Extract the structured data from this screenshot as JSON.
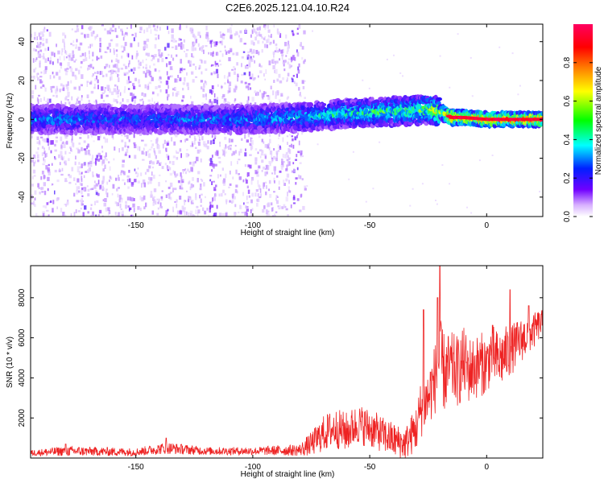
{
  "figure": {
    "title": "C2E6.2025.121.04.10.R24"
  },
  "chart_data": [
    {
      "type": "heatmap",
      "name": "spectrogram",
      "title": "C2E6.2025.121.04.10.R24",
      "xlabel": "Height of straight line (km)",
      "ylabel": "Frequency (Hz)",
      "xlim": [
        -195,
        24
      ],
      "ylim": [
        -50,
        49
      ],
      "x_ticks": [
        -150,
        -100,
        -50,
        0
      ],
      "y_ticks": [
        -40,
        -20,
        0,
        20,
        40
      ],
      "colorbar": {
        "label": "Normalized spectral amplitude",
        "range": [
          0.0,
          1.0
        ],
        "ticks": [
          "0.0",
          "0.2",
          "0.4",
          "0.6",
          "0.8"
        ],
        "tick_values": [
          0.0,
          0.2,
          0.4,
          0.6,
          0.8
        ],
        "colormap": [
          "#ffffff",
          "#7000ff",
          "#0020ff",
          "#00ffff",
          "#00ff00",
          "#ffff00",
          "#ff8000",
          "#ff0000",
          "#ff0060"
        ]
      },
      "ridge": {
        "description_points_x": [
          -195,
          -150,
          -100,
          -80,
          -60,
          -40,
          -25,
          -20,
          -15,
          -10,
          0,
          10,
          24
        ],
        "center_hz": [
          0,
          0,
          0,
          1,
          3,
          4,
          5,
          4,
          1,
          1,
          0,
          0,
          0
        ],
        "peak_amplitude": [
          0.4,
          0.35,
          0.4,
          0.45,
          0.5,
          0.55,
          0.6,
          0.7,
          0.95,
          0.95,
          0.95,
          0.95,
          0.95
        ]
      },
      "noise_region_x": [
        -195,
        -78
      ]
    },
    {
      "type": "line",
      "name": "snr",
      "xlabel": "Height of straight line (km)",
      "ylabel": "SNR (10 * v/v)",
      "xlim": [
        -195,
        24
      ],
      "ylim": [
        0,
        9600
      ],
      "x_ticks": [
        -150,
        -100,
        -50,
        0
      ],
      "y_ticks": [
        2000,
        4000,
        6000,
        8000
      ],
      "series": [
        {
          "color": "#ee2222",
          "trend_x": [
            -195,
            -180,
            -150,
            -137,
            -120,
            -100,
            -80,
            -75,
            -70,
            -65,
            -60,
            -55,
            -50,
            -45,
            -40,
            -35,
            -30,
            -28,
            -25,
            -22,
            -20,
            -18,
            -15,
            -12,
            -10,
            -8,
            -5,
            -2,
            0,
            2,
            5,
            8,
            10,
            12,
            15,
            18,
            20,
            22,
            24
          ],
          "trend_y": [
            250,
            350,
            300,
            500,
            350,
            350,
            400,
            700,
            1200,
            1500,
            1300,
            1700,
            1500,
            1200,
            900,
            700,
            1500,
            2500,
            3000,
            4000,
            5000,
            4200,
            4500,
            4300,
            4800,
            4400,
            4500,
            4700,
            4600,
            5300,
            4800,
            5200,
            5300,
            5600,
            5900,
            6200,
            6300,
            6600,
            6800
          ],
          "jitter_y": [
            150,
            250,
            200,
            300,
            200,
            200,
            300,
            600,
            900,
            1000,
            1000,
            1000,
            1000,
            900,
            900,
            800,
            1200,
            1500,
            1500,
            1800,
            2000,
            2000,
            1800,
            1800,
            1800,
            1700,
            1600,
            1600,
            1500,
            1500,
            1500,
            1400,
            1300,
            1200,
            1100,
            1000,
            900,
            800,
            600
          ],
          "peaks": [
            {
              "x": -20,
              "y": 9600
            },
            {
              "x": -27,
              "y": 7400
            },
            {
              "x": -21,
              "y": 8000
            },
            {
              "x": 10,
              "y": 8400
            },
            {
              "x": 18,
              "y": 7600
            },
            {
              "x": -137,
              "y": 1000
            },
            {
              "x": -180,
              "y": 700
            }
          ]
        }
      ]
    }
  ]
}
